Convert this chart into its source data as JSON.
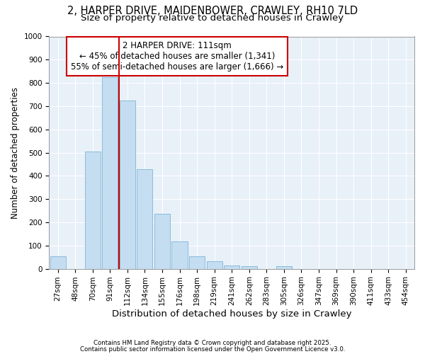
{
  "title_line1": "2, HARPER DRIVE, MAIDENBOWER, CRAWLEY, RH10 7LD",
  "title_line2": "Size of property relative to detached houses in Crawley",
  "xlabel": "Distribution of detached houses by size in Crawley",
  "ylabel": "Number of detached properties",
  "categories": [
    "27sqm",
    "48sqm",
    "70sqm",
    "91sqm",
    "112sqm",
    "134sqm",
    "155sqm",
    "176sqm",
    "198sqm",
    "219sqm",
    "241sqm",
    "262sqm",
    "283sqm",
    "305sqm",
    "326sqm",
    "347sqm",
    "369sqm",
    "390sqm",
    "411sqm",
    "433sqm",
    "454sqm"
  ],
  "values": [
    55,
    0,
    505,
    825,
    725,
    430,
    238,
    118,
    55,
    32,
    15,
    10,
    0,
    12,
    0,
    0,
    0,
    0,
    0,
    0,
    0
  ],
  "bar_color": "#c5ddf0",
  "bar_edgecolor": "#7ab5d8",
  "vline_x_index": 4,
  "vline_color": "#cc0000",
  "annotation_text": "2 HARPER DRIVE: 111sqm\n← 45% of detached houses are smaller (1,341)\n55% of semi-detached houses are larger (1,666) →",
  "annotation_fontsize": 8.5,
  "annotation_box_color": "#cc0000",
  "ylim": [
    0,
    1000
  ],
  "yticks": [
    0,
    100,
    200,
    300,
    400,
    500,
    600,
    700,
    800,
    900,
    1000
  ],
  "bg_color": "#e8f0f8",
  "footnote1": "Contains HM Land Registry data © Crown copyright and database right 2025.",
  "footnote2": "Contains public sector information licensed under the Open Government Licence v3.0.",
  "title_fontsize": 10.5,
  "subtitle_fontsize": 9.5,
  "xlabel_fontsize": 9.5,
  "ylabel_fontsize": 8.5,
  "tick_fontsize": 7.5
}
